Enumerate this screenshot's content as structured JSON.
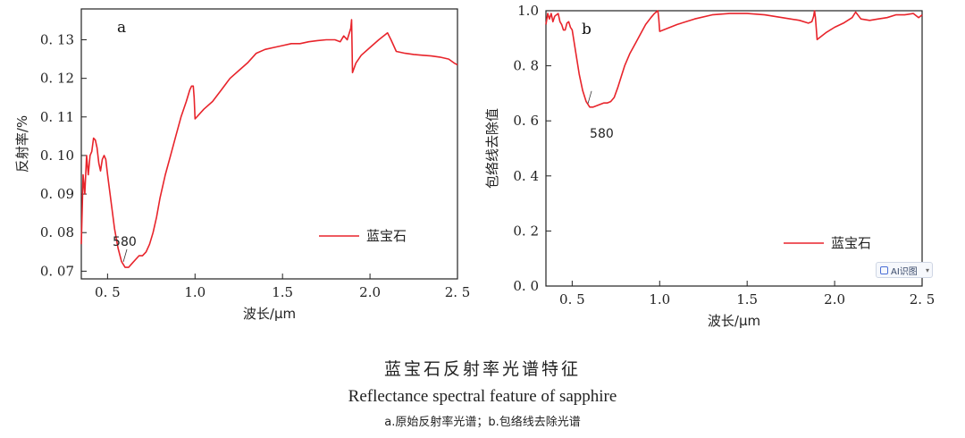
{
  "chart_data": [
    {
      "type": "line",
      "panel_label": "a",
      "xlabel": "波长/μm",
      "ylabel": "反射率/%",
      "xlim": [
        0.35,
        2.5
      ],
      "ylim": [
        0.068,
        0.138
      ],
      "xticks": [
        0.5,
        1.0,
        1.5,
        2.0,
        2.5
      ],
      "xtick_labels": [
        "0. 5",
        "1.0",
        "1.5",
        "2.0",
        "2. 5"
      ],
      "yticks": [
        0.07,
        0.08,
        0.09,
        0.1,
        0.11,
        0.12,
        0.13
      ],
      "ytick_labels": [
        "0. 07",
        "0. 08",
        "0. 09",
        "0. 10",
        "0. 11",
        "0. 12",
        "0. 13"
      ],
      "legend_position": "lower-right",
      "series": [
        {
          "name": "蓝宝石",
          "color": "#e8242b",
          "x": [
            0.35,
            0.36,
            0.37,
            0.38,
            0.39,
            0.4,
            0.41,
            0.42,
            0.43,
            0.44,
            0.45,
            0.46,
            0.47,
            0.48,
            0.49,
            0.5,
            0.52,
            0.54,
            0.56,
            0.58,
            0.6,
            0.62,
            0.64,
            0.66,
            0.68,
            0.7,
            0.72,
            0.74,
            0.76,
            0.78,
            0.8,
            0.83,
            0.86,
            0.89,
            0.92,
            0.95,
            0.97,
            0.98,
            0.99,
            0.995,
            1.0,
            1.05,
            1.1,
            1.15,
            1.2,
            1.25,
            1.3,
            1.35,
            1.4,
            1.45,
            1.5,
            1.55,
            1.6,
            1.65,
            1.7,
            1.75,
            1.8,
            1.83,
            1.85,
            1.87,
            1.89,
            1.895,
            1.9,
            1.92,
            1.95,
            2.0,
            2.05,
            2.1,
            2.12,
            2.15,
            2.2,
            2.25,
            2.3,
            2.35,
            2.4,
            2.45,
            2.48,
            2.5
          ],
          "y": [
            0.077,
            0.095,
            0.09,
            0.1,
            0.095,
            0.1,
            0.101,
            0.1045,
            0.104,
            0.102,
            0.098,
            0.096,
            0.099,
            0.1,
            0.099,
            0.095,
            0.088,
            0.081,
            0.076,
            0.0725,
            0.071,
            0.071,
            0.072,
            0.073,
            0.074,
            0.074,
            0.075,
            0.077,
            0.08,
            0.084,
            0.089,
            0.095,
            0.1,
            0.105,
            0.11,
            0.114,
            0.117,
            0.118,
            0.118,
            0.115,
            0.1095,
            0.112,
            0.114,
            0.117,
            0.12,
            0.122,
            0.124,
            0.1265,
            0.1275,
            0.128,
            0.1285,
            0.129,
            0.129,
            0.1295,
            0.1298,
            0.13,
            0.13,
            0.1295,
            0.131,
            0.13,
            0.133,
            0.1352,
            0.1215,
            0.124,
            0.126,
            0.128,
            0.13,
            0.1318,
            0.13,
            0.127,
            0.1265,
            0.1262,
            0.126,
            0.1258,
            0.1255,
            0.125,
            0.124,
            0.1235
          ]
        }
      ],
      "annotations": [
        {
          "text": "580",
          "x": 0.58,
          "y": 0.0715
        }
      ]
    },
    {
      "type": "line",
      "panel_label": "b",
      "xlabel": "波长/μm",
      "ylabel": "包络线去除值",
      "xlim": [
        0.35,
        2.5
      ],
      "ylim": [
        0.0,
        1.0
      ],
      "xticks": [
        0.5,
        1.0,
        1.5,
        2.0,
        2.5
      ],
      "xtick_labels": [
        "0. 5",
        "1.0",
        "1.5",
        "2.0",
        "2. 5"
      ],
      "yticks": [
        0.0,
        0.2,
        0.4,
        0.6,
        0.8,
        1.0
      ],
      "ytick_labels": [
        "0. 0",
        "0. 2",
        "0. 4",
        "0. 6",
        "0. 8",
        "1.0"
      ],
      "legend_position": "lower-right",
      "series": [
        {
          "name": "蓝宝石",
          "color": "#e8242b",
          "x": [
            0.35,
            0.36,
            0.37,
            0.38,
            0.39,
            0.4,
            0.41,
            0.42,
            0.43,
            0.44,
            0.45,
            0.46,
            0.47,
            0.48,
            0.49,
            0.5,
            0.52,
            0.54,
            0.56,
            0.58,
            0.6,
            0.62,
            0.64,
            0.66,
            0.68,
            0.7,
            0.72,
            0.74,
            0.76,
            0.78,
            0.8,
            0.83,
            0.86,
            0.89,
            0.92,
            0.95,
            0.97,
            0.98,
            0.99,
            0.995,
            1.0,
            1.1,
            1.2,
            1.3,
            1.4,
            1.5,
            1.6,
            1.7,
            1.8,
            1.85,
            1.87,
            1.88,
            1.885,
            1.89,
            1.9,
            1.95,
            2.0,
            2.05,
            2.1,
            2.12,
            2.15,
            2.2,
            2.25,
            2.3,
            2.35,
            2.4,
            2.45,
            2.48,
            2.5
          ],
          "y": [
            0.95,
            0.99,
            0.97,
            0.99,
            0.96,
            0.98,
            0.985,
            0.99,
            0.96,
            0.95,
            0.93,
            0.93,
            0.955,
            0.96,
            0.94,
            0.93,
            0.85,
            0.77,
            0.71,
            0.67,
            0.65,
            0.65,
            0.655,
            0.66,
            0.665,
            0.665,
            0.67,
            0.685,
            0.72,
            0.76,
            0.8,
            0.845,
            0.88,
            0.915,
            0.95,
            0.975,
            0.99,
            0.995,
            1.0,
            0.97,
            0.925,
            0.95,
            0.97,
            0.985,
            0.99,
            0.99,
            0.985,
            0.975,
            0.965,
            0.955,
            0.96,
            0.98,
            1.0,
            0.975,
            0.895,
            0.92,
            0.94,
            0.955,
            0.975,
            0.995,
            0.97,
            0.965,
            0.97,
            0.975,
            0.985,
            0.985,
            0.99,
            0.975,
            0.985
          ]
        }
      ],
      "annotations": [
        {
          "text": "580",
          "x": 0.58,
          "y": 0.65
        }
      ]
    }
  ],
  "caption": {
    "title_zh": "蓝宝石反射率光谱特征",
    "title_en": "Reflectance spectral feature of sapphire",
    "subtitle": "a.原始反射率光谱；b.包络线去除光谱"
  },
  "ai_badge": {
    "label": "AI识图",
    "icon": "ai-scan-icon"
  }
}
